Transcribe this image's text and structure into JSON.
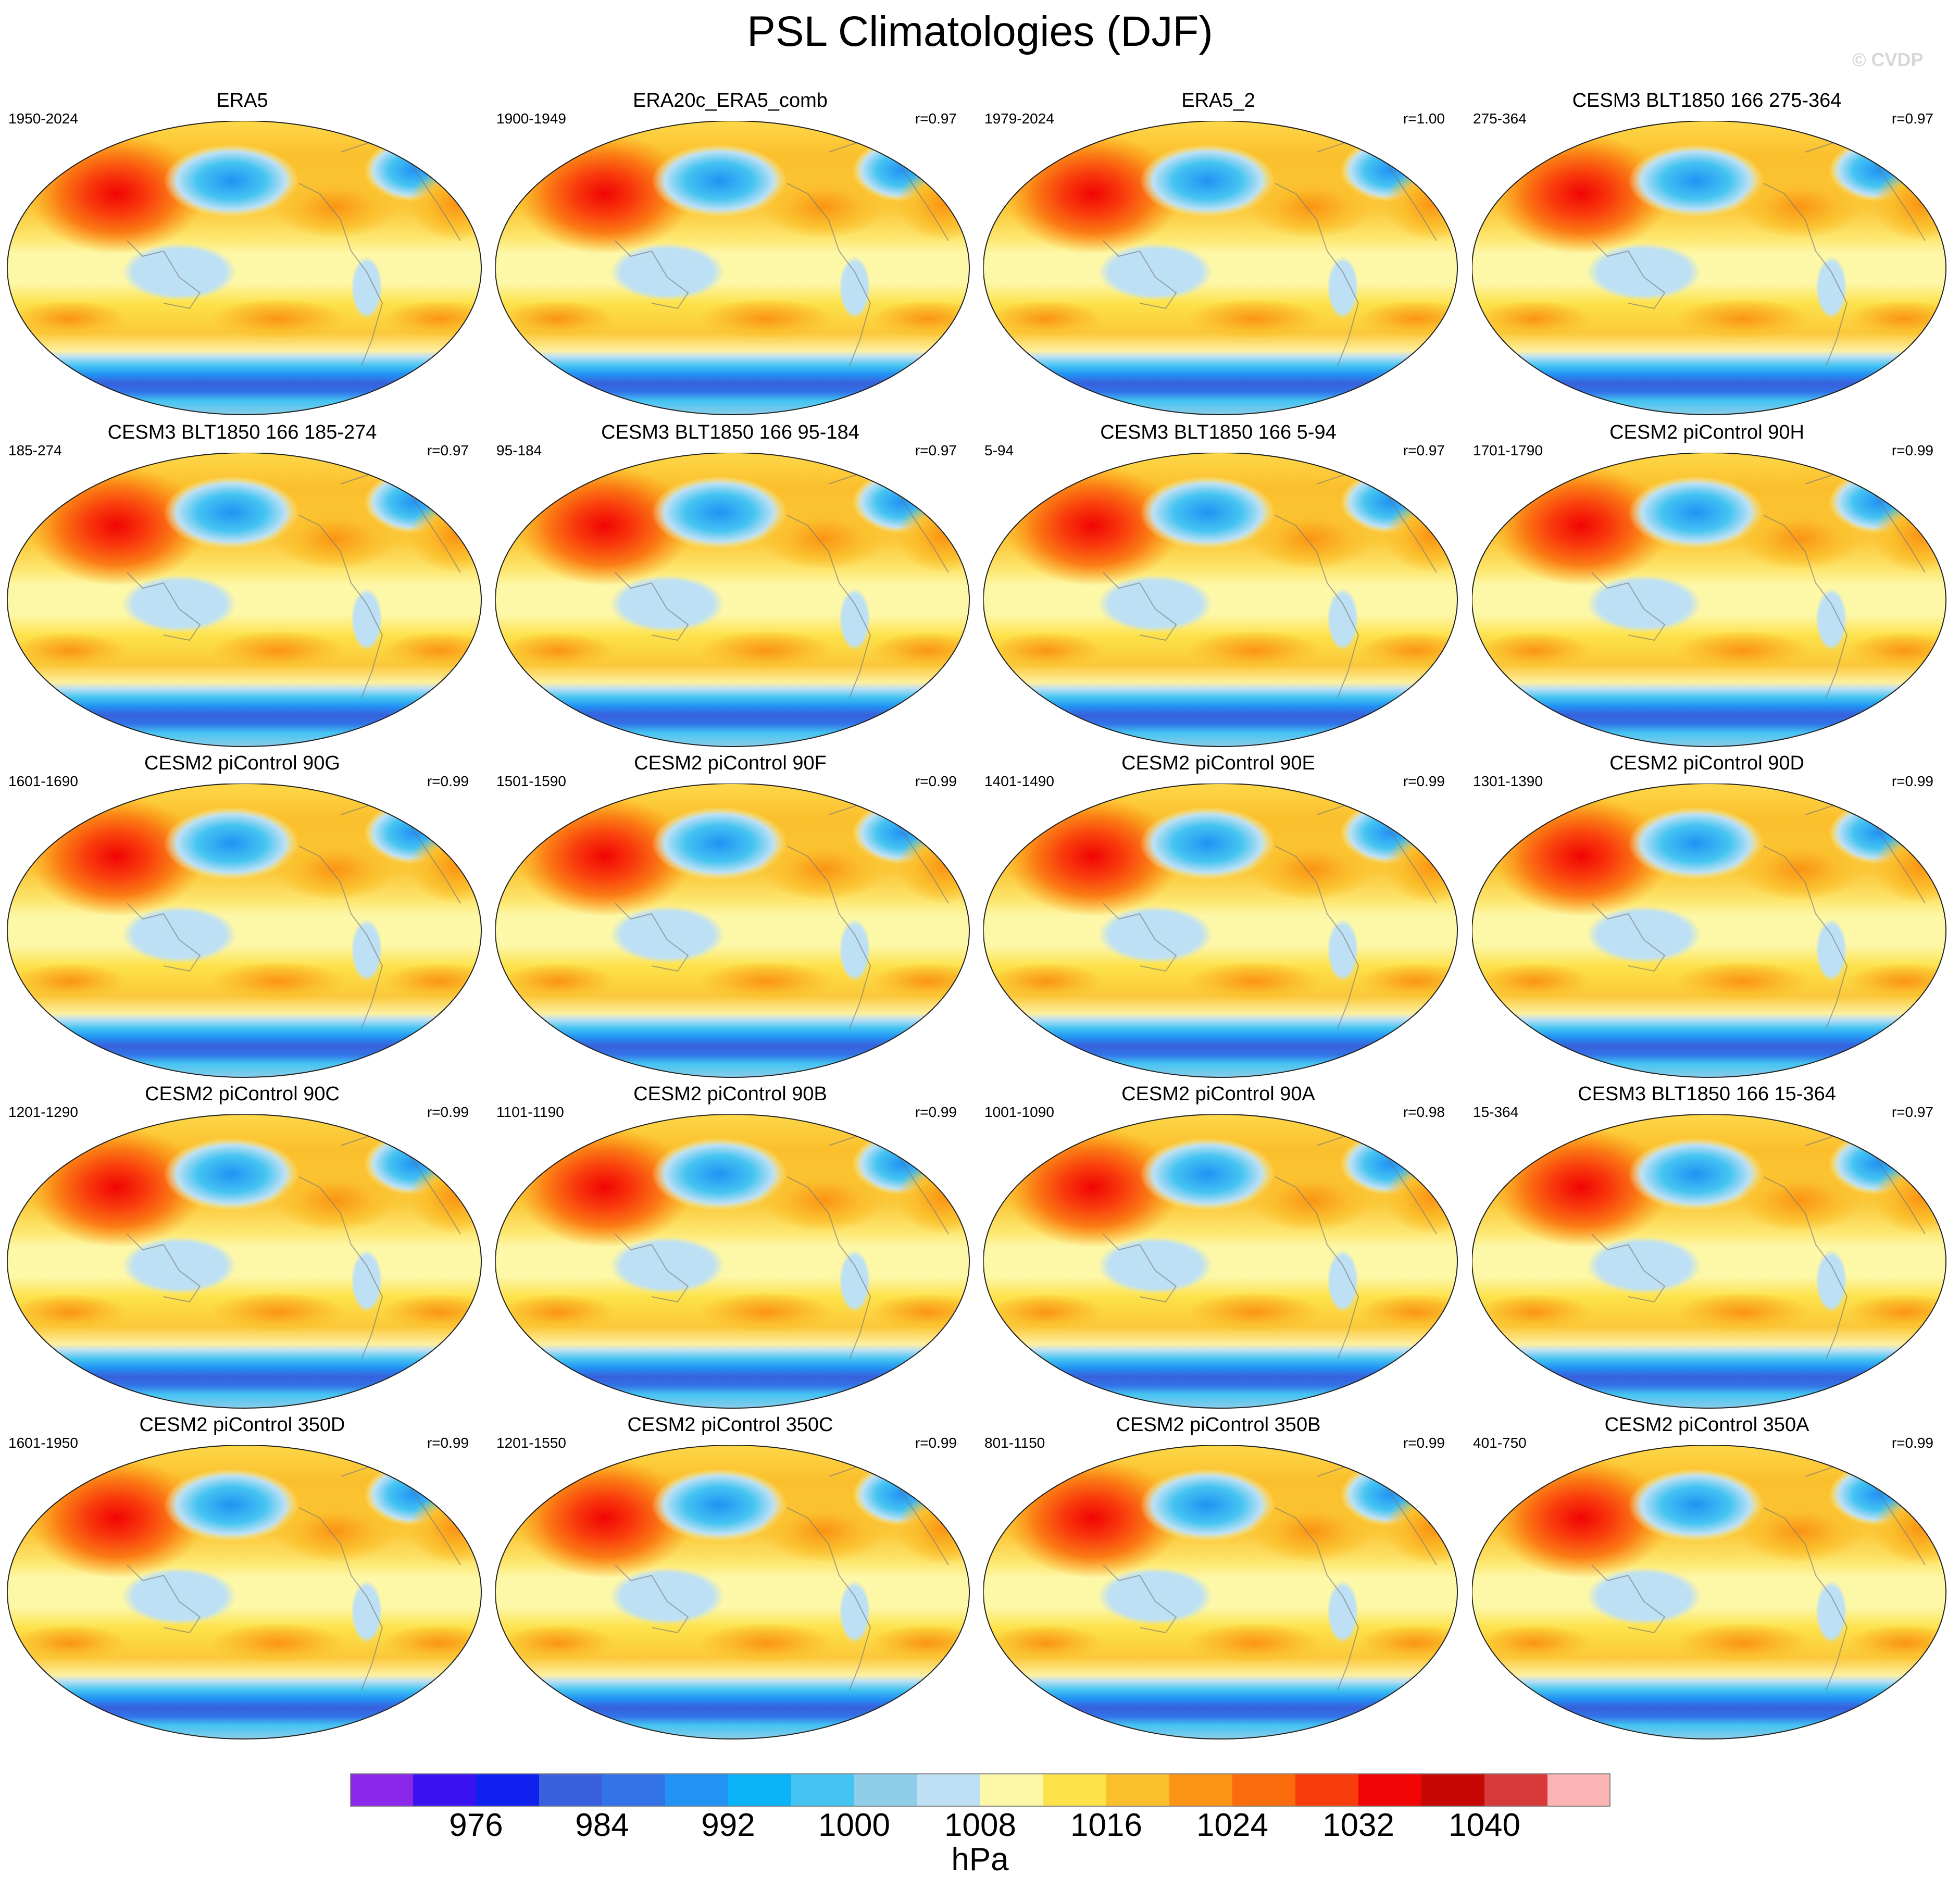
{
  "title": "PSL Climatologies (DJF)",
  "watermark": "© CVDP",
  "units": "hPa",
  "colorbar": {
    "colors": [
      "#8a27e8",
      "#3a12f2",
      "#1020ee",
      "#3860dc",
      "#3274e8",
      "#2292f4",
      "#0ab2f6",
      "#44c4f2",
      "#90cde8",
      "#bde0f4",
      "#fdf7a8",
      "#fde24a",
      "#fbbf2c",
      "#fb9414",
      "#fb6c0c",
      "#f93c0c",
      "#f10404",
      "#c70606",
      "#d83a3a",
      "#fdb4b4"
    ],
    "labels": [
      "976",
      "984",
      "992",
      "1000",
      "1008",
      "1016",
      "1024",
      "1032",
      "1040"
    ]
  },
  "panels": [
    {
      "title": "ERA5",
      "years": "1950-2024",
      "corr": ""
    },
    {
      "title": "ERA20c_ERA5_comb",
      "years": "1900-1949",
      "corr": "r=0.97"
    },
    {
      "title": "ERA5_2",
      "years": "1979-2024",
      "corr": "r=1.00"
    },
    {
      "title": "CESM3 BLT1850 166 275-364",
      "years": "275-364",
      "corr": "r=0.97"
    },
    {
      "title": "CESM3 BLT1850 166 185-274",
      "years": "185-274",
      "corr": "r=0.97"
    },
    {
      "title": "CESM3 BLT1850 166 95-184",
      "years": "95-184",
      "corr": "r=0.97"
    },
    {
      "title": "CESM3 BLT1850 166 5-94",
      "years": "5-94",
      "corr": "r=0.97"
    },
    {
      "title": "CESM2 piControl 90H",
      "years": "1701-1790",
      "corr": "r=0.99"
    },
    {
      "title": "CESM2 piControl 90G",
      "years": "1601-1690",
      "corr": "r=0.99"
    },
    {
      "title": "CESM2 piControl 90F",
      "years": "1501-1590",
      "corr": "r=0.99"
    },
    {
      "title": "CESM2 piControl 90E",
      "years": "1401-1490",
      "corr": "r=0.99"
    },
    {
      "title": "CESM2 piControl 90D",
      "years": "1301-1390",
      "corr": "r=0.99"
    },
    {
      "title": "CESM2 piControl 90C",
      "years": "1201-1290",
      "corr": "r=0.99"
    },
    {
      "title": "CESM2 piControl 90B",
      "years": "1101-1190",
      "corr": "r=0.99"
    },
    {
      "title": "CESM2 piControl 90A",
      "years": "1001-1090",
      "corr": "r=0.98"
    },
    {
      "title": "CESM3 BLT1850 166 15-364",
      "years": "15-364",
      "corr": "r=0.97"
    },
    {
      "title": "CESM2 piControl 350D",
      "years": "1601-1950",
      "corr": "r=0.99"
    },
    {
      "title": "CESM2 piControl 350C",
      "years": "1201-1550",
      "corr": "r=0.99"
    },
    {
      "title": "CESM2 piControl 350B",
      "years": "801-1150",
      "corr": "r=0.99"
    },
    {
      "title": "CESM2 piControl 350A",
      "years": "401-750",
      "corr": "r=0.99"
    }
  ]
}
